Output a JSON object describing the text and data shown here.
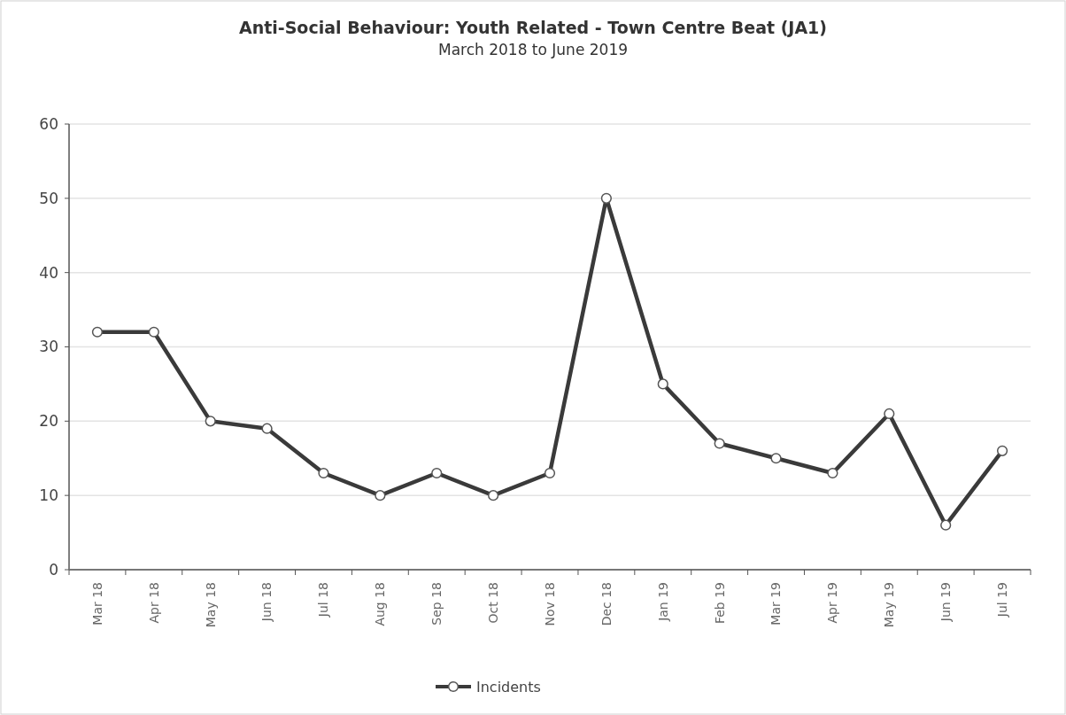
{
  "chart_data": {
    "type": "line",
    "title": "Anti-Social Behaviour: Youth Related - Town Centre Beat (JA1)",
    "subtitle": "March 2018 to June 2019",
    "categories": [
      "Mar 18",
      "Apr 18",
      "May 18",
      "Jun 18",
      "Jul 18",
      "Aug 18",
      "Sep 18",
      "Oct 18",
      "Nov 18",
      "Dec 18",
      "Jan 19",
      "Feb 19",
      "Mar 19",
      "Apr 19",
      "May 19",
      "Jun 19",
      "Jul 19"
    ],
    "series": [
      {
        "name": "Incidents",
        "color": "#3a3a3a",
        "values": [
          32,
          32,
          20,
          19,
          13,
          10,
          13,
          10,
          13,
          50,
          25,
          17,
          15,
          13,
          21,
          6,
          16
        ]
      }
    ],
    "ylim": [
      0,
      60
    ],
    "yticks": [
      0,
      10,
      20,
      30,
      40,
      50,
      60
    ],
    "grid": "y",
    "legend": "bottom",
    "marker": "circle",
    "line_style": "solid"
  }
}
